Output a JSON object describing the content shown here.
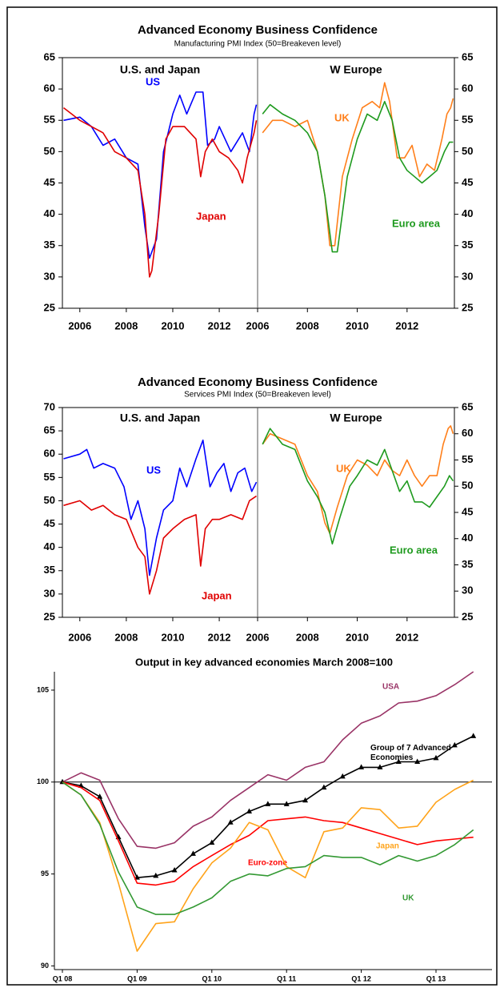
{
  "chart_data": [
    {
      "type": "line",
      "title": "Advanced Economy Business Confidence",
      "subtitle": "Manufacturing PMI Index (50=Breakeven level)",
      "ylim": [
        25,
        65
      ],
      "yticks": [
        25,
        30,
        35,
        40,
        45,
        50,
        55,
        60,
        65
      ],
      "y2lim": [
        25,
        65
      ],
      "y2ticks": [
        25,
        30,
        35,
        40,
        45,
        50,
        55,
        60,
        65
      ],
      "panels": [
        {
          "title": "U.S. and Japan",
          "xlim": [
            2005.25,
            2013.65
          ],
          "xticks": [
            2006,
            2008,
            2010,
            2012
          ],
          "series": [
            {
              "name": "US",
              "color": "#0000ff",
              "x": [
                2005.3,
                2006.0,
                2006.5,
                2007.0,
                2007.5,
                2008.0,
                2008.5,
                2008.8,
                2009.0,
                2009.3,
                2009.6,
                2010.0,
                2010.3,
                2010.6,
                2011.0,
                2011.3,
                2011.5,
                2011.8,
                2012.0,
                2012.5,
                2013.0,
                2013.3,
                2013.5,
                2013.6
              ],
              "values": [
                55,
                55.5,
                54,
                51,
                52,
                49,
                48,
                38,
                33,
                36,
                50,
                56,
                59,
                56,
                59.5,
                59.5,
                51,
                52,
                54,
                50,
                53,
                50,
                56,
                57.5
              ]
            },
            {
              "name": "Japan",
              "color": "#e00000",
              "x": [
                2005.3,
                2006.0,
                2006.5,
                2007.0,
                2007.5,
                2008.0,
                2008.5,
                2008.8,
                2009.0,
                2009.1,
                2009.4,
                2009.7,
                2010.0,
                2010.5,
                2011.0,
                2011.2,
                2011.4,
                2011.7,
                2012.0,
                2012.4,
                2012.8,
                2013.0,
                2013.2,
                2013.5,
                2013.6
              ],
              "values": [
                57,
                55,
                54,
                53,
                50,
                49,
                47,
                40,
                30,
                31,
                40,
                52,
                54,
                54,
                52,
                46,
                50,
                52,
                50,
                49,
                47,
                45,
                49,
                53,
                55
              ]
            }
          ]
        },
        {
          "title": "W Europe",
          "xlim": [
            2006,
            2013.9
          ],
          "xticks": [
            2006,
            2008,
            2010,
            2012
          ],
          "series": [
            {
              "name": "UK",
              "color": "#ff7f1a",
              "axis": "y2",
              "x": [
                2006.2,
                2006.6,
                2007.0,
                2007.5,
                2008.0,
                2008.4,
                2008.7,
                2008.9,
                2009.1,
                2009.4,
                2009.8,
                2010.2,
                2010.6,
                2010.9,
                2011.1,
                2011.3,
                2011.6,
                2011.9,
                2012.2,
                2012.5,
                2012.8,
                2013.1,
                2013.4,
                2013.6,
                2013.75,
                2013.85
              ],
              "values": [
                53,
                55,
                55,
                54,
                55,
                50,
                43,
                35,
                35,
                46,
                52,
                57,
                58,
                57,
                61,
                58,
                49,
                49,
                51,
                46,
                48,
                47,
                52,
                56,
                57,
                58.5
              ]
            },
            {
              "name": "Euro area",
              "color": "#1e9a1e",
              "axis": "y2",
              "x": [
                2006.2,
                2006.5,
                2007.0,
                2007.5,
                2008.0,
                2008.4,
                2008.7,
                2009.0,
                2009.2,
                2009.6,
                2010.0,
                2010.4,
                2010.8,
                2011.1,
                2011.4,
                2011.7,
                2012.0,
                2012.3,
                2012.6,
                2012.9,
                2013.2,
                2013.5,
                2013.7,
                2013.85
              ],
              "values": [
                56,
                57.5,
                56,
                55,
                53,
                50,
                43,
                34,
                34,
                46,
                52,
                56,
                55,
                58,
                55,
                49,
                47,
                46,
                45,
                46,
                47,
                50,
                51.5,
                51.5
              ]
            }
          ]
        }
      ]
    },
    {
      "type": "line",
      "title": "Advanced Economy Business Confidence",
      "subtitle": "Services PMI Index (50=Breakeven level)",
      "ylim": [
        25,
        70
      ],
      "yticks": [
        25,
        30,
        35,
        40,
        45,
        50,
        55,
        60,
        65,
        70
      ],
      "y2lim": [
        25,
        65
      ],
      "y2ticks": [
        25,
        30,
        35,
        40,
        45,
        50,
        55,
        60,
        65
      ],
      "panels": [
        {
          "title": "U.S. and Japan",
          "xlim": [
            2005.25,
            2013.65
          ],
          "xticks": [
            2006,
            2008,
            2010,
            2012
          ],
          "series": [
            {
              "name": "US",
              "color": "#0000ff",
              "x": [
                2005.3,
                2006.0,
                2006.3,
                2006.6,
                2007.0,
                2007.5,
                2007.9,
                2008.2,
                2008.5,
                2008.8,
                2009.0,
                2009.3,
                2009.6,
                2010.0,
                2010.3,
                2010.6,
                2011.0,
                2011.3,
                2011.6,
                2011.9,
                2012.2,
                2012.5,
                2012.8,
                2013.1,
                2013.4,
                2013.6
              ],
              "values": [
                59,
                60,
                61,
                57,
                58,
                57,
                53,
                46,
                50,
                44,
                34,
                42,
                48,
                50,
                57,
                53,
                59,
                63,
                53,
                56,
                58,
                52,
                56,
                57,
                52,
                54
              ]
            },
            {
              "name": "Japan",
              "color": "#e00000",
              "x": [
                2005.3,
                2006.0,
                2006.5,
                2007.0,
                2007.5,
                2008.0,
                2008.5,
                2008.8,
                2009.0,
                2009.3,
                2009.6,
                2010.0,
                2010.5,
                2011.0,
                2011.2,
                2011.4,
                2011.7,
                2012.0,
                2012.5,
                2013.0,
                2013.3,
                2013.6
              ],
              "values": [
                49,
                50,
                48,
                49,
                47,
                46,
                40,
                38,
                30,
                35,
                42,
                44,
                46,
                47,
                36,
                44,
                46,
                46,
                47,
                46,
                50,
                51
              ]
            }
          ]
        },
        {
          "title": "W Europe",
          "xlim": [
            2006,
            2013.9
          ],
          "xticks": [
            2006,
            2008,
            2010,
            2012
          ],
          "series": [
            {
              "name": "UK",
              "color": "#ff7f1a",
              "axis": "y2",
              "x": [
                2006.2,
                2006.5,
                2007.0,
                2007.5,
                2008.0,
                2008.4,
                2008.7,
                2008.9,
                2009.2,
                2009.6,
                2010.0,
                2010.4,
                2010.8,
                2011.1,
                2011.4,
                2011.7,
                2012.0,
                2012.3,
                2012.6,
                2012.9,
                2013.2,
                2013.45,
                2013.65,
                2013.75,
                2013.85
              ],
              "values": [
                58,
                60,
                59,
                58,
                52,
                49,
                43,
                41,
                46,
                52,
                55,
                54,
                52,
                55,
                53,
                52,
                55,
                52,
                50,
                52,
                52,
                58,
                61,
                61.5,
                60
              ]
            },
            {
              "name": "Euro area",
              "color": "#1e9a1e",
              "axis": "y2",
              "x": [
                2006.2,
                2006.5,
                2007.0,
                2007.5,
                2008.0,
                2008.4,
                2008.7,
                2009.0,
                2009.3,
                2009.7,
                2010.0,
                2010.4,
                2010.8,
                2011.1,
                2011.4,
                2011.7,
                2012.0,
                2012.3,
                2012.6,
                2012.9,
                2013.2,
                2013.5,
                2013.7,
                2013.85
              ],
              "values": [
                58,
                61,
                58,
                57,
                51,
                48,
                45,
                39,
                44,
                50,
                52,
                55,
                54,
                57,
                53,
                49,
                51,
                47,
                47,
                46,
                48,
                50,
                52,
                51
              ]
            }
          ]
        }
      ]
    },
    {
      "type": "category-line",
      "title": "Output in key advanced economies March 2008=100",
      "categories": [
        "Q1 08",
        null,
        null,
        null,
        "Q1 09",
        null,
        null,
        null,
        "Q1 10",
        null,
        null,
        null,
        "Q1 11",
        null,
        null,
        null,
        "Q1 12",
        null,
        null,
        null,
        "Q1 13",
        null,
        null
      ],
      "ylim": [
        89.8,
        106
      ],
      "yticks": [
        90,
        95,
        100,
        105
      ],
      "hline": 100,
      "series": [
        {
          "name": "USA",
          "color": "#993366",
          "values": [
            100,
            100.5,
            100.1,
            98,
            96.5,
            96.4,
            96.7,
            97.6,
            98.1,
            99.0,
            99.7,
            100.4,
            100.1,
            100.8,
            101.1,
            102.3,
            103.2,
            103.6,
            104.3,
            104.4,
            104.7,
            105.3,
            106.0
          ]
        },
        {
          "name": "Group of  7 Advanced Economies",
          "color": "#000000",
          "marker": "triangle",
          "values": [
            100,
            99.8,
            99.2,
            97,
            94.8,
            94.9,
            95.2,
            96.1,
            96.7,
            97.8,
            98.4,
            98.8,
            98.8,
            99.0,
            99.7,
            100.3,
            100.8,
            100.8,
            101.1,
            101.1,
            101.3,
            102.0,
            102.5
          ]
        },
        {
          "name": "Euro-zone",
          "color": "#ff0000",
          "values": [
            100,
            99.7,
            99.0,
            96.8,
            94.5,
            94.4,
            94.6,
            95.4,
            96.0,
            96.6,
            97.1,
            97.9,
            98.0,
            98.1,
            97.9,
            97.8,
            97.5,
            97.2,
            96.9,
            96.6,
            96.8,
            96.9,
            97.0
          ]
        },
        {
          "name": "Japan",
          "color": "#ffa31a",
          "values": [
            100,
            99.3,
            97.8,
            94.5,
            90.8,
            92.3,
            92.4,
            94.2,
            95.6,
            96.4,
            97.8,
            97.4,
            95.4,
            94.8,
            97.3,
            97.5,
            98.6,
            98.5,
            97.5,
            97.6,
            98.9,
            99.6,
            100.1
          ]
        },
        {
          "name": "UK",
          "color": "#339933",
          "values": [
            100,
            99.3,
            97.7,
            95.1,
            93.2,
            92.8,
            92.8,
            93.2,
            93.7,
            94.6,
            95.0,
            94.9,
            95.3,
            95.4,
            96.0,
            95.9,
            95.9,
            95.5,
            96.0,
            95.7,
            96.0,
            96.6,
            97.4
          ]
        }
      ]
    }
  ]
}
